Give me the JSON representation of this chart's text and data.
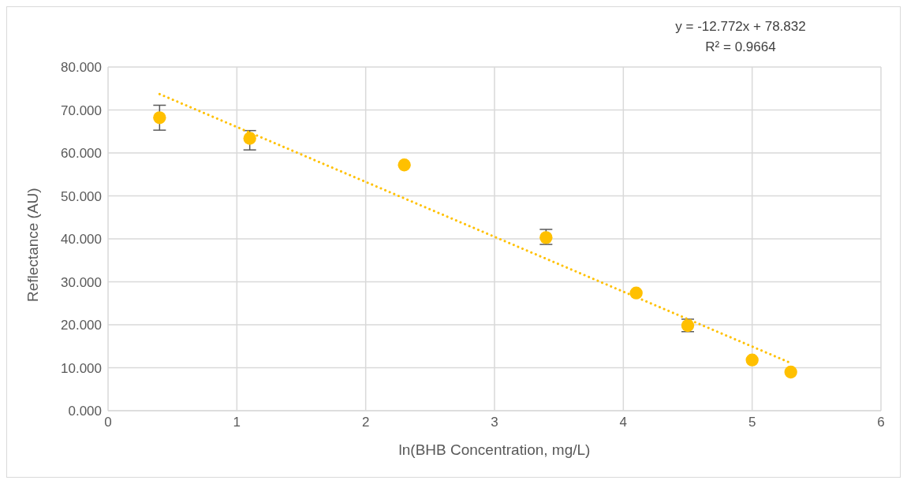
{
  "chart_data": {
    "type": "scatter",
    "xlabel": "ln(BHB Concentration, mg/L)",
    "ylabel": "Reflectance (AU)",
    "annotations": [
      "y = -12.772x + 78.832",
      "R² = 0.9664"
    ],
    "xlim": [
      0,
      6
    ],
    "xticks": [
      0,
      1,
      2,
      3,
      4,
      5,
      6
    ],
    "ylim": [
      0,
      80
    ],
    "yticks": [
      {
        "value": 0,
        "label": "0.000"
      },
      {
        "value": 10,
        "label": "10.000"
      },
      {
        "value": 20,
        "label": "20.000"
      },
      {
        "value": 30,
        "label": "30.000"
      },
      {
        "value": 40,
        "label": "40.000"
      },
      {
        "value": 50,
        "label": "50.000"
      },
      {
        "value": 60,
        "label": "60.000"
      },
      {
        "value": 70,
        "label": "70.000"
      },
      {
        "value": 80,
        "label": "80.000"
      }
    ],
    "grid": true,
    "legend": false,
    "series": [
      {
        "color": "#ffc000",
        "marker": "circle",
        "x": [
          0.4,
          1.1,
          2.3,
          3.4,
          4.1,
          4.5,
          5.0,
          5.3
        ],
        "values": [
          68.2,
          63.4,
          57.2,
          40.3,
          27.4,
          19.8,
          11.8,
          9.0
        ],
        "errors": [
          [
            65.3,
            71.1
          ],
          [
            60.7,
            65.2
          ],
          null,
          [
            38.7,
            42.2
          ],
          null,
          [
            18.4,
            21.3
          ],
          null,
          null
        ]
      },
      {
        "type": "line",
        "color": "#ffc000",
        "line_style": "dotted",
        "x": [
          0.4,
          5.3
        ],
        "values": [
          73.7,
          11.1
        ]
      }
    ]
  }
}
